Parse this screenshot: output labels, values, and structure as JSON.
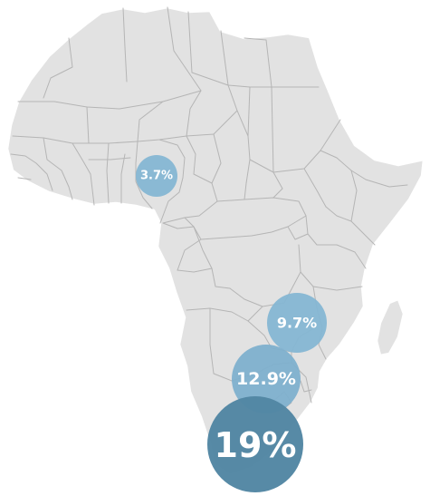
{
  "map": {
    "markers": [
      {
        "region": "Nigeria",
        "label": "3.7%",
        "value": 3.7,
        "color": "#85b6d3"
      },
      {
        "region": "Malawi",
        "label": "9.7%",
        "value": 9.7,
        "color": "#85b6d3"
      },
      {
        "region": "Mozambique",
        "label": "12.9%",
        "value": 12.9,
        "color": "#7eb0cd"
      },
      {
        "region": "South Africa",
        "label": "19%",
        "value": 19,
        "color": "#5286a3"
      }
    ],
    "colors": {
      "land": "#e2e2e2",
      "border": "#b5b5b5",
      "background": "#ffffff"
    }
  }
}
